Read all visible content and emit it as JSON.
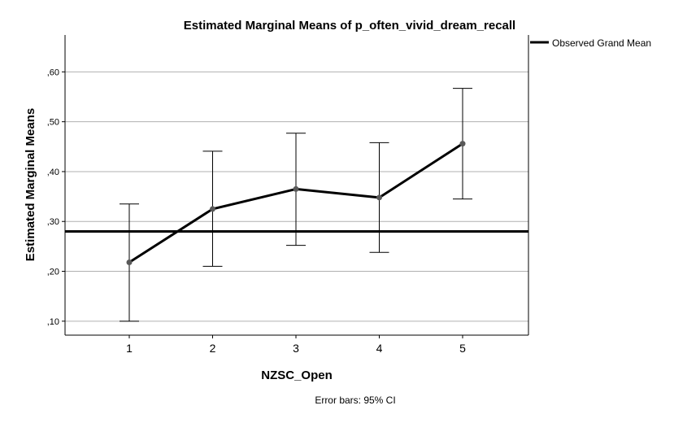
{
  "chart_data": {
    "type": "line",
    "title": "Estimated Marginal Means of p_often_vivid_dream_recall",
    "xlabel": "NZSC_Open",
    "ylabel": "Estimated Marginal Means",
    "categories": [
      "1",
      "2",
      "3",
      "4",
      "5"
    ],
    "series": [
      {
        "values": [
          0.218,
          0.325,
          0.365,
          0.348,
          0.456
        ],
        "ci_lower": [
          0.1,
          0.21,
          0.252,
          0.238,
          0.345
        ],
        "ci_upper": [
          0.335,
          0.441,
          0.477,
          0.458,
          0.567
        ]
      }
    ],
    "reference_line": {
      "name": "Observed Grand Mean",
      "value": 0.28
    },
    "ylim": [
      0.072,
      0.674
    ],
    "yticks": [
      0.1,
      0.2,
      0.3,
      0.4,
      0.5,
      0.6
    ],
    "ytick_labels": [
      ",10",
      ",20",
      ",30",
      ",40",
      ",50",
      ",60"
    ],
    "grid": "horizontal",
    "legend_position": "top-right",
    "footnote": "Error bars: 95% CI",
    "colors": {
      "line": "#000000",
      "marker": "#595959",
      "grid": "#b0b0b0",
      "axis": "#000000"
    }
  }
}
